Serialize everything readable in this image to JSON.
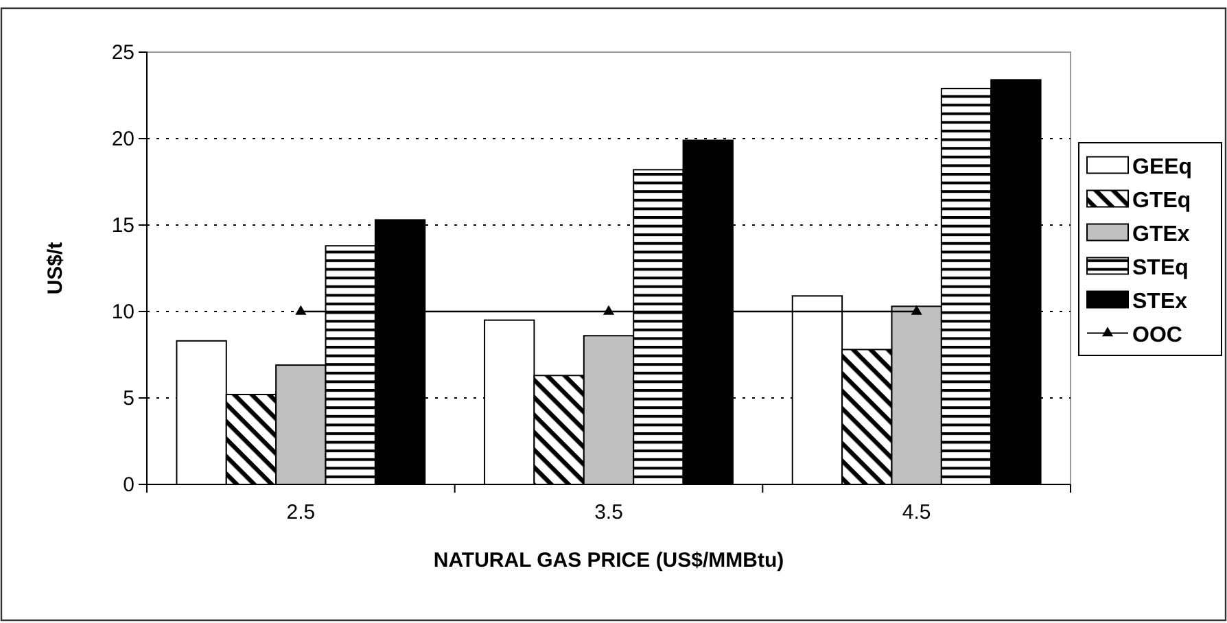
{
  "chart_data": {
    "type": "bar",
    "xlabel": "NATURAL GAS PRICE (US$/MMBtu)",
    "ylabel": "US$/t",
    "categories": [
      "2.5",
      "3.5",
      "4.5"
    ],
    "series": [
      {
        "name": "GEEq",
        "color": "#ffffff",
        "values": [
          8.3,
          9.5,
          10.9
        ]
      },
      {
        "name": "GTEq",
        "color": "#000000",
        "values": [
          5.2,
          6.3,
          7.8
        ]
      },
      {
        "name": "GTEx",
        "color": "#c0c0c0",
        "values": [
          6.9,
          8.6,
          10.3
        ]
      },
      {
        "name": "STEq",
        "color": "#000000",
        "values": [
          13.8,
          18.2,
          22.9
        ]
      },
      {
        "name": "STEx",
        "color": "#000000",
        "values": [
          15.3,
          19.9,
          23.4
        ]
      },
      {
        "name": "OOC",
        "type": "line",
        "color": "#000000",
        "marker": "triangle",
        "values": [
          10,
          10,
          10
        ]
      }
    ],
    "ylim": [
      0,
      25
    ],
    "yticks": [
      0,
      5,
      10,
      15,
      20,
      25
    ],
    "grid": "y",
    "legend": "right"
  }
}
